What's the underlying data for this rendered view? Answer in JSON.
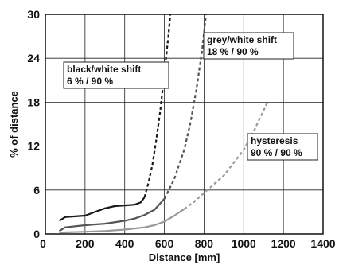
{
  "chart_data": {
    "type": "line",
    "title": "",
    "xlabel": "Distance [mm]",
    "ylabel": "% of distance",
    "xlim": [
      0,
      1400
    ],
    "ylim": [
      0,
      30
    ],
    "x_ticks": [
      0,
      200,
      400,
      600,
      800,
      1000,
      1200,
      1400
    ],
    "y_ticks": [
      0,
      6,
      12,
      18,
      24,
      30
    ],
    "grid": true,
    "legend": "none",
    "series": [
      {
        "color": "#1a1a1a",
        "dash": "solid-then-dashed",
        "x": [
          70,
          100,
          150,
          200,
          250,
          300,
          350,
          400,
          450,
          480,
          500,
          520,
          540,
          560,
          580,
          600,
          620,
          630
        ],
        "y": [
          1.8,
          2.3,
          2.4,
          2.5,
          3.0,
          3.5,
          3.8,
          3.9,
          4.0,
          4.3,
          5.0,
          7.0,
          9.5,
          13.0,
          17.0,
          22.0,
          27.0,
          30.0
        ]
      },
      {
        "color": "#555555",
        "dash": "solid-then-dashed",
        "x": [
          70,
          100,
          200,
          300,
          400,
          450,
          500,
          550,
          600,
          650,
          700,
          730,
          760,
          790,
          810
        ],
        "y": [
          0.4,
          0.9,
          1.2,
          1.4,
          1.8,
          2.1,
          2.6,
          3.3,
          4.8,
          7.5,
          11.5,
          15.0,
          19.5,
          25.0,
          30.0
        ]
      },
      {
        "color": "#999999",
        "dash": "solid-then-dashed",
        "x": [
          70,
          200,
          300,
          400,
          500,
          550,
          600,
          650,
          700,
          750,
          800,
          900,
          1000,
          1050,
          1120
        ],
        "y": [
          0.2,
          0.3,
          0.4,
          0.6,
          0.9,
          1.2,
          1.7,
          2.5,
          3.4,
          4.4,
          5.6,
          8.0,
          11.5,
          14.0,
          18.0
        ]
      }
    ],
    "annotations": [
      {
        "lines": [
          "black/white shift",
          "6 % / 90 %"
        ]
      },
      {
        "lines": [
          "grey/white shift",
          "18 % / 90 %"
        ]
      },
      {
        "lines": [
          "hysteresis",
          "90 % / 90 %"
        ]
      }
    ]
  }
}
